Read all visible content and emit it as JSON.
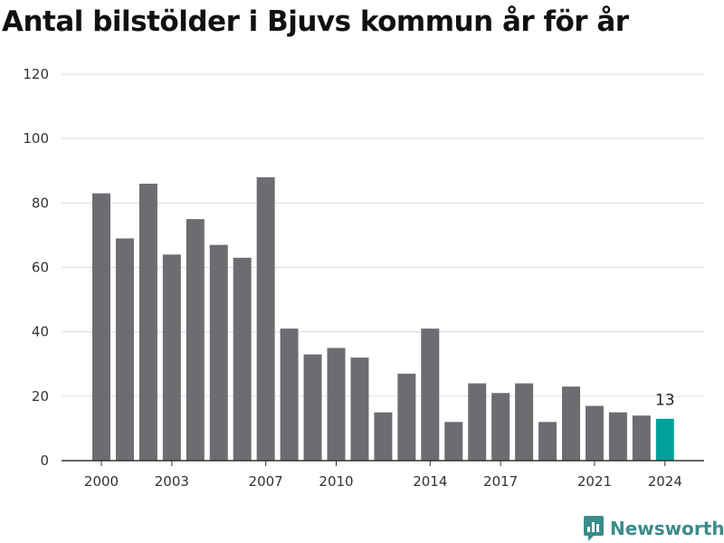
{
  "title": "Antal bilstölder i Bjuvs kommun år för år",
  "brand": {
    "name": "Newsworthy",
    "icon": "newsworthy-logo-icon",
    "color": "#3a8c8c"
  },
  "colors": {
    "bar": "#6d6c71",
    "highlight": "#00a19a",
    "grid": "#dcdcdc",
    "axis": "#333333"
  },
  "chart_data": {
    "type": "bar",
    "title": "Antal bilstölder i Bjuvs kommun år för år",
    "xlabel": "",
    "ylabel": "",
    "ylim": [
      0,
      120
    ],
    "yticks": [
      0,
      20,
      40,
      60,
      80,
      100,
      120
    ],
    "grid": true,
    "categories": [
      2000,
      2001,
      2002,
      2003,
      2004,
      2005,
      2006,
      2007,
      2008,
      2009,
      2010,
      2011,
      2012,
      2013,
      2014,
      2015,
      2016,
      2017,
      2018,
      2019,
      2020,
      2021,
      2022,
      2023,
      2024
    ],
    "values": [
      83,
      69,
      86,
      64,
      75,
      67,
      63,
      88,
      41,
      33,
      35,
      32,
      15,
      27,
      41,
      12,
      24,
      21,
      24,
      12,
      23,
      17,
      15,
      14,
      13
    ],
    "xtick_labels": [
      "2000",
      "2003",
      "2007",
      "2010",
      "2014",
      "2017",
      "2021",
      "2024"
    ],
    "highlight": {
      "category": 2024,
      "label": "13"
    }
  }
}
